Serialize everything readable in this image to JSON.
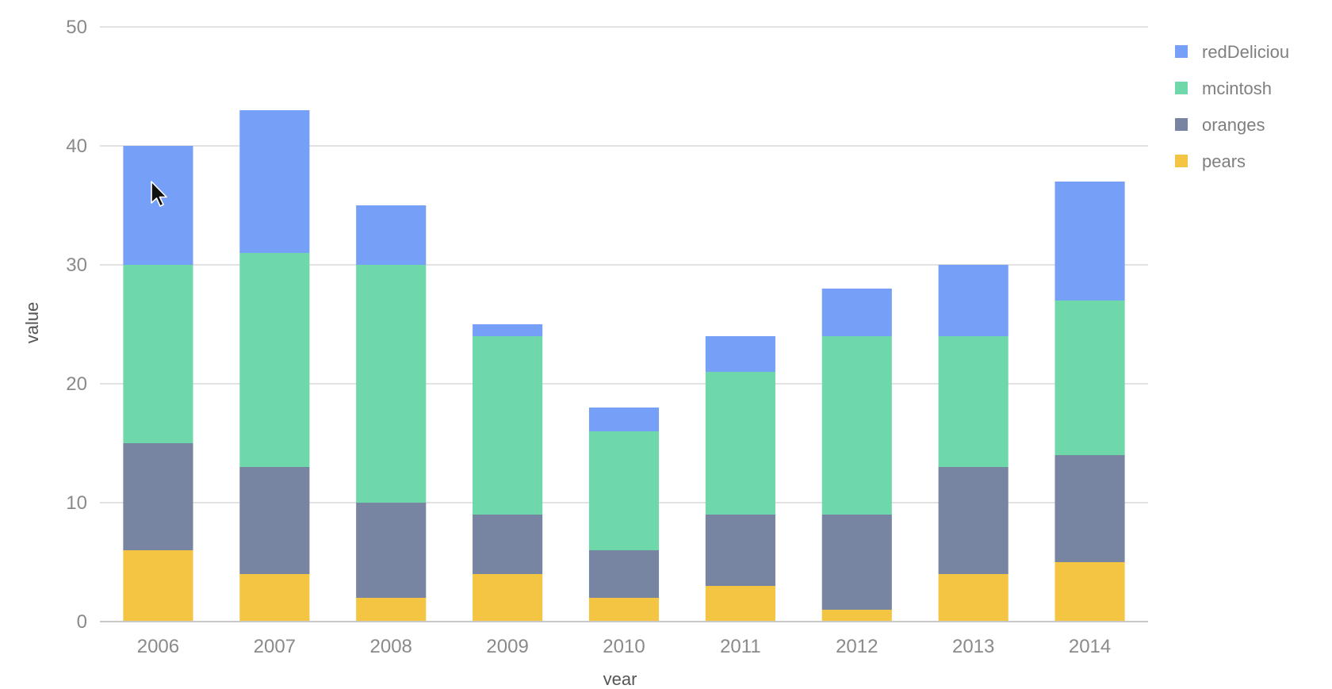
{
  "chart_data": {
    "type": "bar",
    "stacked": true,
    "title": "",
    "xlabel": "year",
    "ylabel": "value",
    "ylim": [
      0,
      50
    ],
    "yticks": [
      0,
      10,
      20,
      30,
      40,
      50
    ],
    "grid": true,
    "legend_position": "top-right",
    "categories": [
      "2006",
      "2007",
      "2008",
      "2009",
      "2010",
      "2011",
      "2012",
      "2013",
      "2014"
    ],
    "series": [
      {
        "name": "pears",
        "color": "#f4c542",
        "values": [
          6,
          4,
          2,
          4,
          2,
          3,
          1,
          4,
          5
        ]
      },
      {
        "name": "oranges",
        "color": "#7785a2",
        "values": [
          9,
          9,
          8,
          5,
          4,
          6,
          8,
          9,
          9
        ]
      },
      {
        "name": "mcintosh",
        "color": "#6fd8ab",
        "values": [
          15,
          18,
          20,
          15,
          10,
          12,
          15,
          11,
          13
        ]
      },
      {
        "name": "redDeliciou",
        "color": "#76a0f7",
        "values": [
          10,
          12,
          5,
          1,
          2,
          3,
          4,
          6,
          10
        ]
      }
    ],
    "legend_order": [
      "redDeliciou",
      "mcintosh",
      "oranges",
      "pears"
    ]
  },
  "cursor": {
    "icon": "mouse-pointer-icon"
  }
}
